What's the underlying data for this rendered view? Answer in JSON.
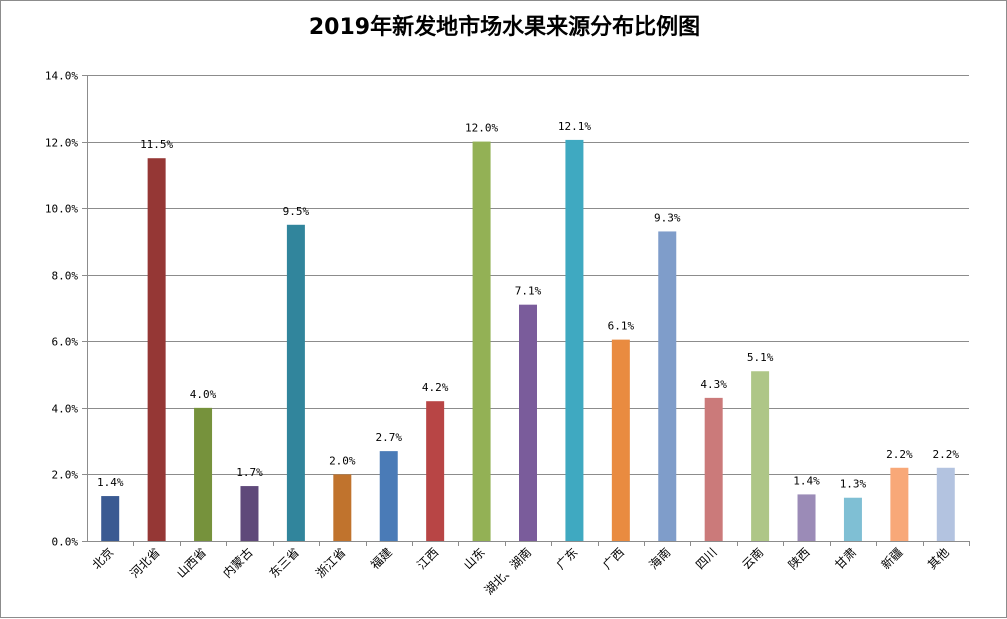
{
  "chart_data": {
    "type": "bar",
    "title": "2019年新发地市场水果来源分布比例图",
    "xlabel": "",
    "ylabel": "",
    "ylim": [
      0,
      14
    ],
    "y_ticks": [
      "0.0%",
      "2.0%",
      "4.0%",
      "6.0%",
      "8.0%",
      "10.0%",
      "12.0%",
      "14.0%"
    ],
    "grid": true,
    "legend": "none",
    "categories": [
      "北京",
      "河北省",
      "山西省",
      "内蒙古",
      "东三省",
      "浙江省",
      "福建",
      "江西",
      "山东",
      "湖北、湖南",
      "广东",
      "广西",
      "海南",
      "四川",
      "云南",
      "陕西",
      "甘肃",
      "新疆",
      "其他"
    ],
    "values": [
      1.35,
      11.5,
      4.0,
      1.65,
      9.5,
      2.0,
      2.7,
      4.2,
      12.0,
      7.1,
      12.05,
      6.05,
      9.3,
      4.3,
      5.1,
      1.4,
      1.3,
      2.2,
      2.2
    ],
    "data_labels": [
      "1.4%",
      "11.5%",
      "4.0%",
      "1.7%",
      "9.5%",
      "2.0%",
      "2.7%",
      "4.2%",
      "12.0%",
      "7.1%",
      "12.1%",
      "6.1%",
      "9.3%",
      "4.3%",
      "5.1%",
      "1.4%",
      "1.3%",
      "2.2%",
      "2.2%"
    ],
    "colors": [
      "#3a5a92",
      "#953735",
      "#76923c",
      "#5f497a",
      "#31859c",
      "#c0732d",
      "#4a7bb7",
      "#b84545",
      "#93b155",
      "#7a5c9b",
      "#3fa9c1",
      "#e98b40",
      "#7f9dca",
      "#cb7a7a",
      "#aec687",
      "#9b8bb7",
      "#7fbfd4",
      "#f8a878",
      "#b3c3e0"
    ]
  }
}
